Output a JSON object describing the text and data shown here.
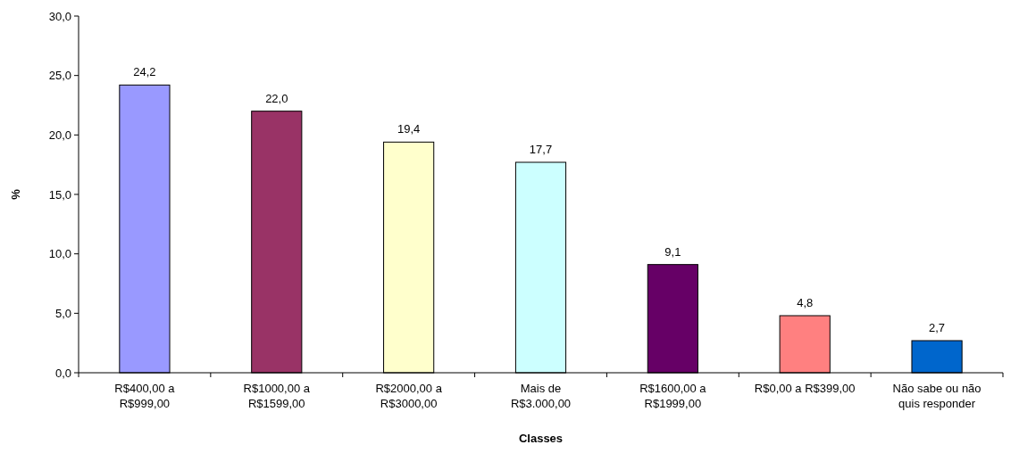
{
  "chart_data": {
    "type": "bar",
    "xlabel": "Classes",
    "ylabel": "%",
    "categories": [
      "R$400,00 a R$999,00",
      "R$1000,00 a R$1599,00",
      "R$2000,00 a R$3000,00",
      "Mais de R$3.000,00",
      "R$1600,00 a R$1999,00",
      "R$0,00 a R$399,00",
      "Não sabe ou não quis responder"
    ],
    "values": [
      24.2,
      22.0,
      19.4,
      17.7,
      9.1,
      4.8,
      2.7
    ],
    "value_labels": [
      "24,2",
      "22,0",
      "19,4",
      "17,7",
      "9,1",
      "4,8",
      "2,7"
    ],
    "colors": [
      "#9999ff",
      "#993366",
      "#ffffcc",
      "#ccffff",
      "#660066",
      "#ff8080",
      "#0066cc"
    ],
    "ylim": [
      0,
      30
    ],
    "yticks": [
      {
        "value": 0,
        "label": "0,0"
      },
      {
        "value": 5,
        "label": "5,0"
      },
      {
        "value": 10,
        "label": "10,0"
      },
      {
        "value": 15,
        "label": "15,0"
      },
      {
        "value": 20,
        "label": "20,0"
      },
      {
        "value": 25,
        "label": "25,0"
      },
      {
        "value": 30,
        "label": "30,0"
      }
    ],
    "grid": false
  }
}
